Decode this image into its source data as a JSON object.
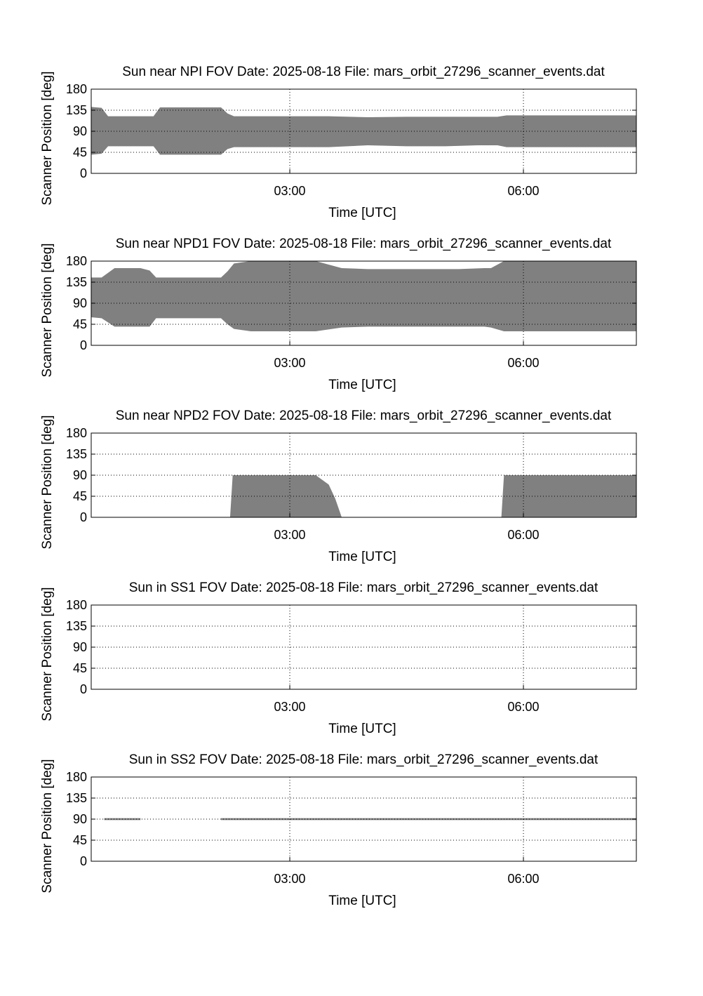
{
  "fill_color": "#808080",
  "chart_data": [
    {
      "type": "area",
      "title": "Sun near NPI FOV   Date: 2025-08-18   File: mars_orbit_27296_scanner_events.dat",
      "xlabel": "Time [UTC]",
      "ylabel": "Scanner Position [deg]",
      "xlim": [
        "00:27",
        "07:27"
      ],
      "ylim": [
        0,
        180
      ],
      "yticks": [
        0,
        45,
        90,
        135,
        180
      ],
      "xticks": [
        "03:00",
        "06:00"
      ],
      "grid": true,
      "x": [
        "00:27",
        "00:35",
        "00:40",
        "01:00",
        "01:15",
        "01:20",
        "01:40",
        "02:00",
        "02:07",
        "02:12",
        "02:17",
        "02:30",
        "03:30",
        "04:00",
        "04:30",
        "05:00",
        "05:25",
        "05:40",
        "05:47",
        "06:30",
        "07:27"
      ],
      "upper": [
        142,
        140,
        122,
        122,
        122,
        141,
        141,
        141,
        141,
        128,
        122,
        122,
        122,
        120,
        121,
        121,
        121,
        121,
        124,
        124,
        124
      ],
      "lower": [
        40,
        42,
        58,
        58,
        58,
        40,
        40,
        40,
        40,
        52,
        56,
        56,
        56,
        60,
        58,
        58,
        60,
        60,
        56,
        56,
        56
      ]
    },
    {
      "type": "area",
      "title": "Sun near NPD1 FOV   Date: 2025-08-18   File: mars_orbit_27296_scanner_events.dat",
      "xlabel": "Time [UTC]",
      "ylabel": "Scanner Position [deg]",
      "xlim": [
        "00:27",
        "07:27"
      ],
      "ylim": [
        0,
        180
      ],
      "yticks": [
        0,
        45,
        90,
        135,
        180
      ],
      "xticks": [
        "03:00",
        "06:00"
      ],
      "grid": true,
      "x": [
        "00:27",
        "00:35",
        "00:45",
        "01:05",
        "01:12",
        "01:17",
        "01:40",
        "02:00",
        "02:07",
        "02:12",
        "02:17",
        "02:30",
        "03:20",
        "03:40",
        "04:00",
        "05:10",
        "05:30",
        "05:35",
        "05:45",
        "06:30",
        "07:27"
      ],
      "upper": [
        145,
        145,
        165,
        165,
        160,
        145,
        145,
        145,
        145,
        158,
        175,
        180,
        180,
        165,
        163,
        163,
        165,
        165,
        180,
        180,
        180
      ],
      "lower": [
        60,
        58,
        40,
        40,
        40,
        58,
        58,
        58,
        58,
        45,
        35,
        30,
        30,
        38,
        40,
        40,
        40,
        38,
        30,
        30,
        30
      ]
    },
    {
      "type": "area",
      "title": "Sun near NPD2 FOV   Date: 2025-08-18   File: mars_orbit_27296_scanner_events.dat",
      "xlabel": "Time [UTC]",
      "ylabel": "Scanner Position [deg]",
      "xlim": [
        "00:27",
        "07:27"
      ],
      "ylim": [
        0,
        180
      ],
      "yticks": [
        0,
        45,
        90,
        135,
        180
      ],
      "xticks": [
        "03:00",
        "06:00"
      ],
      "grid": true,
      "x": [
        "02:14",
        "02:16",
        "03:20",
        "03:30",
        "03:35",
        "03:40",
        "05:43",
        "05:45",
        "07:27"
      ],
      "upper": [
        0,
        90,
        90,
        70,
        40,
        0,
        0,
        90,
        90
      ],
      "lower": [
        0,
        0,
        0,
        0,
        0,
        0,
        0,
        0,
        0
      ],
      "note_segments": [
        [
          0,
          5
        ],
        [
          6,
          8
        ]
      ]
    },
    {
      "type": "area",
      "title": "Sun in SS1 FOV   Date: 2025-08-18   File: mars_orbit_27296_scanner_events.dat",
      "xlabel": "Time [UTC]",
      "ylabel": "Scanner Position [deg]",
      "xlim": [
        "00:27",
        "07:27"
      ],
      "ylim": [
        0,
        180
      ],
      "yticks": [
        0,
        45,
        90,
        135,
        180
      ],
      "xticks": [
        "03:00",
        "06:00"
      ],
      "grid": true,
      "x": [],
      "upper": [],
      "lower": []
    },
    {
      "type": "area",
      "title": "Sun in SS2 FOV   Date: 2025-08-18   File: mars_orbit_27296_scanner_events.dat",
      "xlabel": "Time [UTC]",
      "ylabel": "Scanner Position [deg]",
      "xlim": [
        "00:27",
        "07:27"
      ],
      "ylim": [
        0,
        180
      ],
      "yticks": [
        0,
        45,
        90,
        135,
        180
      ],
      "xticks": [
        "03:00",
        "06:00"
      ],
      "grid": true,
      "bands": [
        {
          "x": [
            "00:37",
            "01:05"
          ],
          "upper": 92,
          "lower": 88
        },
        {
          "x": [
            "02:07",
            "07:27"
          ],
          "upper": 92,
          "lower": 88
        }
      ]
    }
  ]
}
